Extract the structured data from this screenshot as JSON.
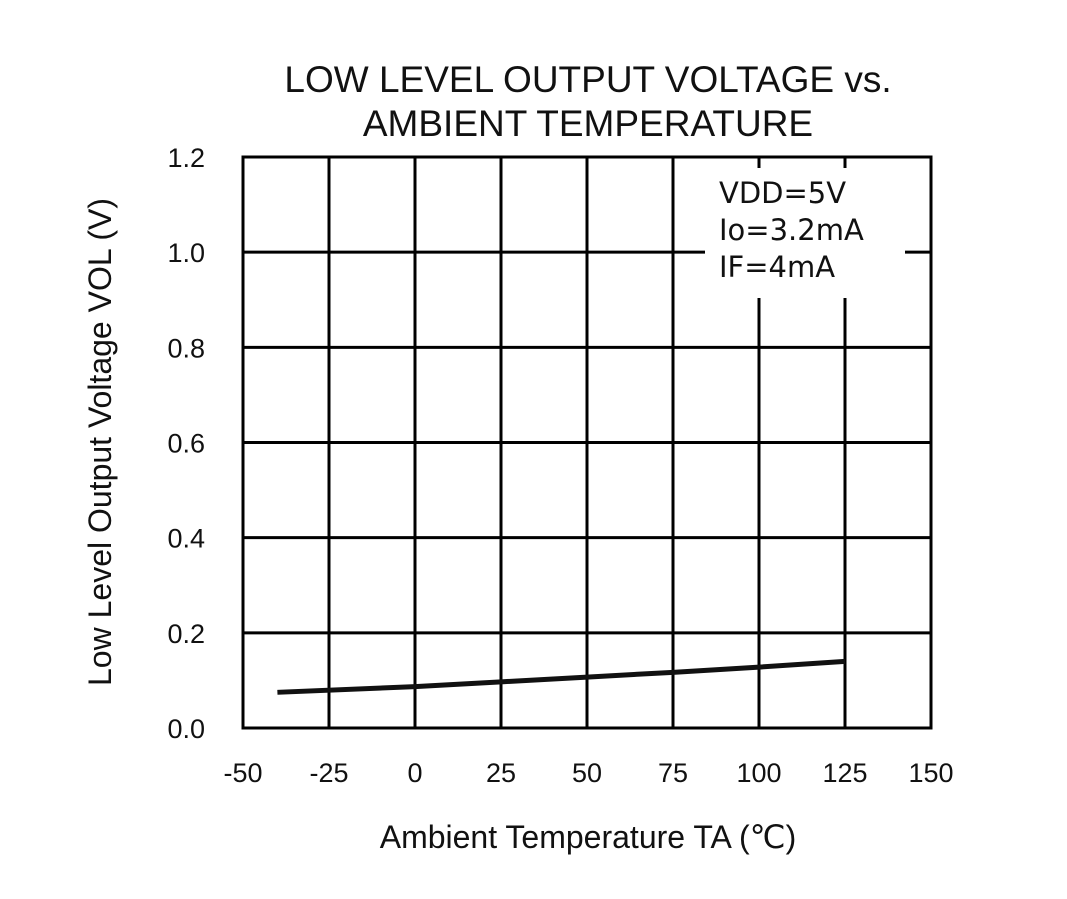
{
  "chart_data": {
    "type": "line",
    "title_lines": [
      "LOW LEVEL OUTPUT VOLTAGE vs.",
      "AMBIENT TEMPERATURE"
    ],
    "xlabel": "Ambient Temperature TA  (℃)",
    "ylabel": "Low Level Output Voltage VOL (V)",
    "xlim": [
      -50,
      150
    ],
    "ylim": [
      0,
      1.2
    ],
    "x_ticks": [
      -50,
      -25,
      0,
      25,
      50,
      75,
      100,
      125,
      150
    ],
    "x_tick_labels": [
      "-50",
      "-25",
      "0",
      "25",
      "50",
      "75",
      "100",
      "125",
      "150"
    ],
    "y_ticks": [
      0,
      0.2,
      0.4,
      0.6,
      0.8,
      1.0,
      1.2
    ],
    "y_tick_labels": [
      "0.0",
      "0.2",
      "0.4",
      "0.6",
      "0.8",
      "1.0",
      "1.2"
    ],
    "grid": true,
    "legend": null,
    "annotation": {
      "placement": "top-right",
      "lines": [
        "VDD=5V",
        "Io=3.2mA",
        "IF=4mA"
      ]
    },
    "series": [
      {
        "color": "#111111",
        "x": [
          -40,
          0,
          25,
          50,
          75,
          100,
          125
        ],
        "y": [
          0.075,
          0.087,
          0.097,
          0.107,
          0.117,
          0.128,
          0.14
        ]
      }
    ]
  }
}
